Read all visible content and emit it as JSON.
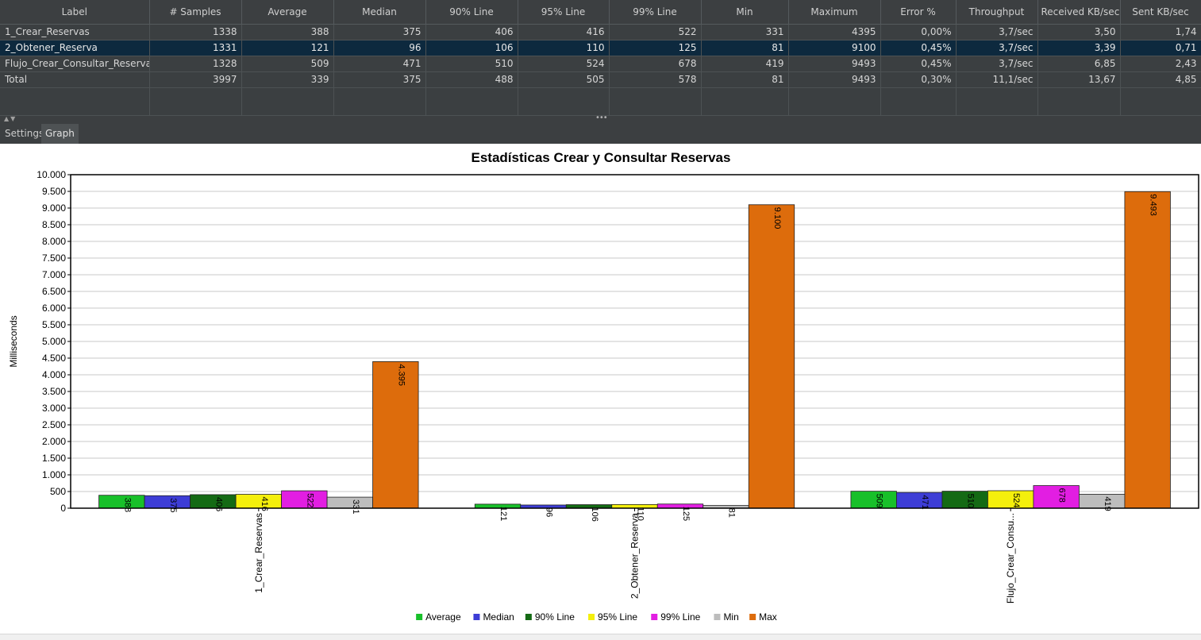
{
  "table": {
    "columns": [
      "Label",
      "# Samples",
      "Average",
      "Median",
      "90% Line",
      "95% Line",
      "99% Line",
      "Min",
      "Maximum",
      "Error %",
      "Throughput",
      "Received KB/sec",
      "Sent KB/sec"
    ],
    "rows": [
      [
        "1_Crear_Reservas",
        "1338",
        "388",
        "375",
        "406",
        "416",
        "522",
        "331",
        "4395",
        "0,00%",
        "3,7/sec",
        "3,50",
        "1,74"
      ],
      [
        "2_Obtener_Reserva",
        "1331",
        "121",
        "96",
        "106",
        "110",
        "125",
        "81",
        "9100",
        "0,45%",
        "3,7/sec",
        "3,39",
        "0,71"
      ],
      [
        "Flujo_Crear_Consultar_Reservas",
        "1328",
        "509",
        "471",
        "510",
        "524",
        "678",
        "419",
        "9493",
        "0,45%",
        "3,7/sec",
        "6,85",
        "2,43"
      ],
      [
        "Total",
        "3997",
        "339",
        "375",
        "488",
        "505",
        "578",
        "81",
        "9493",
        "0,30%",
        "11,1/sec",
        "13,67",
        "4,85"
      ]
    ],
    "selected_row": 1
  },
  "tabs": {
    "settings": "Settings",
    "graph": "Graph",
    "active": "graph"
  },
  "chart_data": {
    "type": "bar",
    "title": "Estadísticas Crear y Consultar Reservas",
    "ylabel": "Milliseconds",
    "xlabel": "",
    "ylim": [
      0,
      10000
    ],
    "ytick_step": 500,
    "grid": true,
    "legend_position": "bottom",
    "categories": [
      "1_Crear_Reservas",
      "2_Obtener_Reserva",
      "Flujo_Crear_Consu..."
    ],
    "series": [
      {
        "name": "Average",
        "color": "#18c02a",
        "values": [
          388,
          121,
          509
        ]
      },
      {
        "name": "Median",
        "color": "#3d3dd6",
        "values": [
          375,
          96,
          471
        ]
      },
      {
        "name": "90% Line",
        "color": "#146a14",
        "values": [
          406,
          106,
          510
        ]
      },
      {
        "name": "95% Line",
        "color": "#f4ef0c",
        "values": [
          416,
          110,
          524
        ]
      },
      {
        "name": "99% Line",
        "color": "#e21ee2",
        "values": [
          522,
          125,
          678
        ]
      },
      {
        "name": "Min",
        "color": "#bdbdbd",
        "values": [
          331,
          81,
          419
        ]
      },
      {
        "name": "Max",
        "color": "#dd6c0c",
        "values": [
          4395,
          9100,
          9493
        ]
      }
    ]
  }
}
